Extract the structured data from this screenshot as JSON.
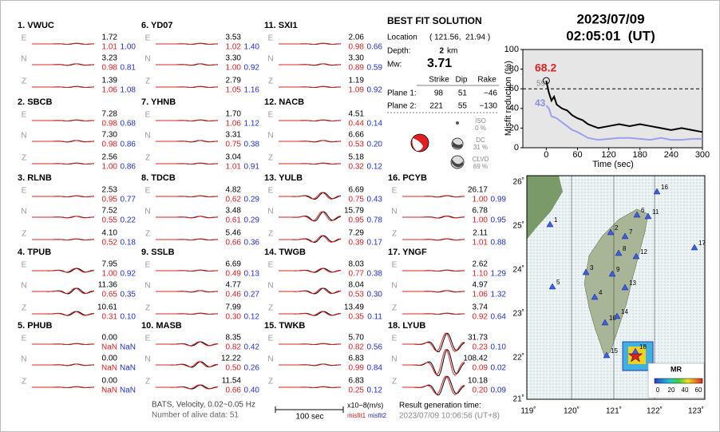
{
  "header": {
    "date": "2023/07/09",
    "time": "02:05:01  (UT)"
  },
  "solution": {
    "title": "BEST FIT SOLUTION",
    "location_label": "Location",
    "location": "( 121.56,  21.94 )",
    "depth_label": "Depth:",
    "depth": "2",
    "depth_unit": "km",
    "mw_label": "Mw:",
    "mw": "3.71",
    "table_header": [
      "Strike",
      "Dip",
      "Rake"
    ],
    "planes": [
      [
        "Plane 1:",
        "98",
        "51",
        "−46"
      ],
      [
        "Plane 2:",
        "221",
        "55",
        "−130"
      ]
    ],
    "components": [
      {
        "name": "ISO",
        "value": "0 %"
      },
      {
        "name": "DC",
        "value": "31 %"
      },
      {
        "name": "CLVD",
        "value": "69 %"
      }
    ]
  },
  "stations": [
    {
      "title": "1. VWUC",
      "channels": [
        {
          "comp": "E",
          "amp": "1.72",
          "misfit1": "1.01",
          "misfit2": "1.00"
        },
        {
          "comp": "N",
          "amp": "3.23",
          "misfit1": "0.98",
          "misfit2": "0.81"
        },
        {
          "comp": "Z",
          "amp": "1.39",
          "misfit1": "1.06",
          "misfit2": "1.08"
        }
      ]
    },
    {
      "title": "2. SBCB",
      "channels": [
        {
          "comp": "E",
          "amp": "7.28",
          "misfit1": "0.98",
          "misfit2": "0.68"
        },
        {
          "comp": "N",
          "amp": "7.30",
          "misfit1": "0.98",
          "misfit2": "0.86"
        },
        {
          "comp": "Z",
          "amp": "2.56",
          "misfit1": "1.00",
          "misfit2": "0.86"
        }
      ]
    },
    {
      "title": "3. RLNB",
      "channels": [
        {
          "comp": "E",
          "amp": "2.53",
          "misfit1": "0.95",
          "misfit2": "0.77"
        },
        {
          "comp": "N",
          "amp": "7.52",
          "misfit1": "0.55",
          "misfit2": "0.22"
        },
        {
          "comp": "Z",
          "amp": "4.10",
          "misfit1": "0.52",
          "misfit2": "0.18"
        }
      ]
    },
    {
      "title": "4. TPUB",
      "channels": [
        {
          "comp": "E",
          "amp": "7.95",
          "misfit1": "1.00",
          "misfit2": "0.92"
        },
        {
          "comp": "N",
          "amp": "11.36",
          "misfit1": "0.65",
          "misfit2": "0.35"
        },
        {
          "comp": "Z",
          "amp": "10.61",
          "misfit1": "0.31",
          "misfit2": "0.10"
        }
      ]
    },
    {
      "title": "5. PHUB",
      "channels": [
        {
          "comp": "E",
          "amp": "0.00",
          "misfit1": "NaN",
          "misfit2": "NaN"
        },
        {
          "comp": "N",
          "amp": "0.00",
          "misfit1": "NaN",
          "misfit2": "NaN"
        },
        {
          "comp": "Z",
          "amp": "0.00",
          "misfit1": "NaN",
          "misfit2": "NaN"
        }
      ]
    },
    {
      "title": "6. YD07",
      "channels": [
        {
          "comp": "E",
          "amp": "3.53",
          "misfit1": "1.02",
          "misfit2": "1.40"
        },
        {
          "comp": "N",
          "amp": "3.30",
          "misfit1": "1.00",
          "misfit2": "0.92"
        },
        {
          "comp": "Z",
          "amp": "2.79",
          "misfit1": "1.05",
          "misfit2": "1.16"
        }
      ]
    },
    {
      "title": "7. YHNB",
      "channels": [
        {
          "comp": "E",
          "amp": "1.70",
          "misfit1": "1.06",
          "misfit2": "1.12"
        },
        {
          "comp": "N",
          "amp": "3.31",
          "misfit1": "0.75",
          "misfit2": "0.38"
        },
        {
          "comp": "Z",
          "amp": "3.04",
          "misfit1": "1.01",
          "misfit2": "0.91"
        }
      ]
    },
    {
      "title": "8. TDCB",
      "channels": [
        {
          "comp": "E",
          "amp": "4.82",
          "misfit1": "0.62",
          "misfit2": "0.29"
        },
        {
          "comp": "N",
          "amp": "3.48",
          "misfit1": "0.61",
          "misfit2": "0.29"
        },
        {
          "comp": "Z",
          "amp": "5.46",
          "misfit1": "0.66",
          "misfit2": "0.36"
        }
      ]
    },
    {
      "title": "9. SSLB",
      "channels": [
        {
          "comp": "E",
          "amp": "6.69",
          "misfit1": "0.49",
          "misfit2": "0.13"
        },
        {
          "comp": "N",
          "amp": "4.77",
          "misfit1": "0.46",
          "misfit2": "0.27"
        },
        {
          "comp": "Z",
          "amp": "7.99",
          "misfit1": "0.30",
          "misfit2": "0.12"
        }
      ]
    },
    {
      "title": "10. MASB",
      "channels": [
        {
          "comp": "E",
          "amp": "8.35",
          "misfit1": "0.82",
          "misfit2": "0.42"
        },
        {
          "comp": "N",
          "amp": "12.22",
          "misfit1": "0.50",
          "misfit2": "0.26"
        },
        {
          "comp": "Z",
          "amp": "11.54",
          "misfit1": "0.66",
          "misfit2": "0.40"
        }
      ]
    },
    {
      "title": "11. SXI1",
      "channels": [
        {
          "comp": "E",
          "amp": "2.06",
          "misfit1": "0.98",
          "misfit2": "0.66"
        },
        {
          "comp": "N",
          "amp": "3.30",
          "misfit1": "0.89",
          "misfit2": "0.59"
        },
        {
          "comp": "Z",
          "amp": "1.19",
          "misfit1": "1.09",
          "misfit2": "0.92"
        }
      ]
    },
    {
      "title": "12. NACB",
      "channels": [
        {
          "comp": "E",
          "amp": "4.51",
          "misfit1": "0.44",
          "misfit2": "0.14"
        },
        {
          "comp": "N",
          "amp": "6.66",
          "misfit1": "0.53",
          "misfit2": "0.20"
        },
        {
          "comp": "Z",
          "amp": "5.18",
          "misfit1": "0.32",
          "misfit2": "0.12"
        }
      ]
    },
    {
      "title": "13. YULB",
      "channels": [
        {
          "comp": "E",
          "amp": "6.69",
          "misfit1": "0.75",
          "misfit2": "0.43"
        },
        {
          "comp": "N",
          "amp": "15.79",
          "misfit1": "0.95",
          "misfit2": "0.78"
        },
        {
          "comp": "Z",
          "amp": "7.29",
          "misfit1": "0.39",
          "misfit2": "0.17"
        }
      ]
    },
    {
      "title": "14. TWGB",
      "channels": [
        {
          "comp": "E",
          "amp": "8.03",
          "misfit1": "0.77",
          "misfit2": "0.38"
        },
        {
          "comp": "N",
          "amp": "8.04",
          "misfit1": "0.53",
          "misfit2": "0.30"
        },
        {
          "comp": "Z",
          "amp": "13.49",
          "misfit1": "0.35",
          "misfit2": "0.11"
        }
      ]
    },
    {
      "title": "15. TWKB",
      "channels": [
        {
          "comp": "E",
          "amp": "5.70",
          "misfit1": "0.82",
          "misfit2": "0.56"
        },
        {
          "comp": "N",
          "amp": "6.83",
          "misfit1": "0.99",
          "misfit2": "0.84"
        },
        {
          "comp": "Z",
          "amp": "6.83",
          "misfit1": "0.25",
          "misfit2": "0.12"
        }
      ]
    },
    {
      "title": "16. PCYB",
      "channels": [
        {
          "comp": "E",
          "amp": "26.17",
          "misfit1": "1.00",
          "misfit2": "0.99"
        },
        {
          "comp": "N",
          "amp": "6.78",
          "misfit1": "1.00",
          "misfit2": "0.95"
        },
        {
          "comp": "Z",
          "amp": "2.11",
          "misfit1": "1.01",
          "misfit2": "0.88"
        }
      ]
    },
    {
      "title": "17. YNGF",
      "channels": [
        {
          "comp": "E",
          "amp": "2.62",
          "misfit1": "1.10",
          "misfit2": "1.29"
        },
        {
          "comp": "N",
          "amp": "4.97",
          "misfit1": "1.06",
          "misfit2": "1.32"
        },
        {
          "comp": "Z",
          "amp": "3.74",
          "misfit1": "0.92",
          "misfit2": "0.64"
        }
      ]
    },
    {
      "title": "18. LYUB",
      "channels": [
        {
          "comp": "E",
          "amp": "31.73",
          "misfit1": "0.23",
          "misfit2": "0.10"
        },
        {
          "comp": "N",
          "amp": "108.42",
          "misfit1": "0.09",
          "misfit2": "0.02"
        },
        {
          "comp": "Z",
          "amp": "10.18",
          "misfit1": "0.20",
          "misfit2": "0.09"
        }
      ]
    }
  ],
  "footer": {
    "filter": "BATS, Velocity, 0.02~0.05 Hz",
    "alive": "Number of alive data: 51",
    "scale": "100 sec",
    "unit": "x10−8(m/s)",
    "misfit1": "misfit1",
    "misfit2": "misfit2",
    "result_label": "Result generation time:",
    "result_time": "2023/07/09 10:06:56 (UT+8)"
  },
  "chart_data": {
    "type": "line",
    "y_label": "Misfit reduction (%)",
    "x_label": "Time (sec)",
    "x": [
      0,
      5,
      10,
      15,
      20,
      30,
      40,
      50,
      60,
      70,
      80,
      90,
      100,
      120,
      140,
      160,
      180,
      200,
      220,
      240,
      260,
      280,
      300
    ],
    "series": [
      {
        "color": "#9aa0f0",
        "values": [
          43,
          40,
          32,
          31,
          30,
          26,
          22,
          18,
          16,
          13,
          10,
          9,
          8,
          9,
          10,
          10,
          9,
          8,
          10,
          8,
          8,
          9,
          9
        ]
      },
      {
        "color": "#000000",
        "values": [
          68.2,
          56,
          48,
          52,
          44,
          40,
          38,
          33,
          30,
          28,
          24,
          22,
          20,
          22,
          24,
          22,
          24,
          22,
          20,
          18,
          20,
          18,
          16
        ]
      }
    ],
    "xlim": [
      -45,
      300
    ],
    "xticks": [
      0,
      60,
      120,
      180,
      240,
      300
    ],
    "ylim": [
      0,
      100
    ],
    "yticks": [
      0,
      20,
      40,
      60,
      80,
      100
    ],
    "ref_line": 60,
    "annotations": [
      {
        "text": "68.2",
        "color": "#e02020"
      },
      {
        "text": "59",
        "color": "#888888"
      },
      {
        "text": "43",
        "color": "#8890ee"
      }
    ]
  },
  "map": {
    "lon_ticks": [
      "119˚",
      "120˚",
      "121˚",
      "122˚",
      "123˚"
    ],
    "lat_ticks": [
      "26˚",
      "25˚",
      "24˚",
      "23˚",
      "22˚",
      "21˚"
    ],
    "stations": [
      "1",
      "2",
      "3",
      "4",
      "5",
      "6",
      "7",
      "8",
      "9",
      "10",
      "11",
      "12",
      "13",
      "14",
      "15",
      "16",
      "17",
      "18"
    ],
    "colorbar_label": "MR",
    "colorbar_ticks": [
      "0",
      "20",
      "40",
      "60"
    ]
  }
}
